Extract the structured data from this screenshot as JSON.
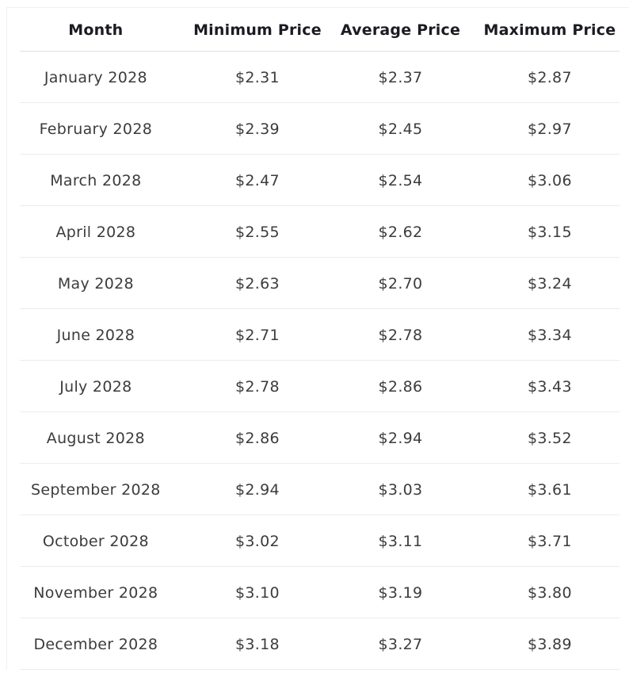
{
  "table": {
    "columns": [
      "Month",
      "Minimum Price",
      "Average Price",
      "Maximum Price"
    ],
    "rows": [
      {
        "month": "January 2028",
        "min": "$2.31",
        "avg": "$2.37",
        "max": "$2.87"
      },
      {
        "month": "February 2028",
        "min": "$2.39",
        "avg": "$2.45",
        "max": "$2.97"
      },
      {
        "month": "March 2028",
        "min": "$2.47",
        "avg": "$2.54",
        "max": "$3.06"
      },
      {
        "month": "April 2028",
        "min": "$2.55",
        "avg": "$2.62",
        "max": "$3.15"
      },
      {
        "month": "May 2028",
        "min": "$2.63",
        "avg": "$2.70",
        "max": "$3.24"
      },
      {
        "month": "June 2028",
        "min": "$2.71",
        "avg": "$2.78",
        "max": "$3.34"
      },
      {
        "month": "July 2028",
        "min": "$2.78",
        "avg": "$2.86",
        "max": "$3.43"
      },
      {
        "month": "August 2028",
        "min": "$2.86",
        "avg": "$2.94",
        "max": "$3.52"
      },
      {
        "month": "September 2028",
        "min": "$2.94",
        "avg": "$3.03",
        "max": "$3.61"
      },
      {
        "month": "October 2028",
        "min": "$3.02",
        "avg": "$3.11",
        "max": "$3.71"
      },
      {
        "month": "November 2028",
        "min": "$3.10",
        "avg": "$3.19",
        "max": "$3.80"
      },
      {
        "month": "December 2028",
        "min": "$3.18",
        "avg": "$3.27",
        "max": "$3.89"
      }
    ]
  },
  "chart_data": {
    "type": "table",
    "columns": [
      "Month",
      "Minimum Price",
      "Average Price",
      "Maximum Price"
    ],
    "categories": [
      "January 2028",
      "February 2028",
      "March 2028",
      "April 2028",
      "May 2028",
      "June 2028",
      "July 2028",
      "August 2028",
      "September 2028",
      "October 2028",
      "November 2028",
      "December 2028"
    ],
    "series": [
      {
        "name": "Minimum Price",
        "values": [
          2.31,
          2.39,
          2.47,
          2.55,
          2.63,
          2.71,
          2.78,
          2.86,
          2.94,
          3.02,
          3.1,
          3.18
        ]
      },
      {
        "name": "Average Price",
        "values": [
          2.37,
          2.45,
          2.54,
          2.62,
          2.7,
          2.78,
          2.86,
          2.94,
          3.03,
          3.11,
          3.19,
          3.27
        ]
      },
      {
        "name": "Maximum Price",
        "values": [
          2.87,
          2.97,
          3.06,
          3.15,
          3.24,
          3.34,
          3.43,
          3.52,
          3.61,
          3.71,
          3.8,
          3.89
        ]
      }
    ],
    "unit": "USD",
    "currency_symbol": "$"
  },
  "colors": {
    "background": "#ffffff",
    "header_text": "#1b1b22",
    "cell_text": "#3c3c3c",
    "row_divider": "#ececec",
    "header_divider": "#e0e0e0",
    "container_border": "#f0f0f0"
  }
}
